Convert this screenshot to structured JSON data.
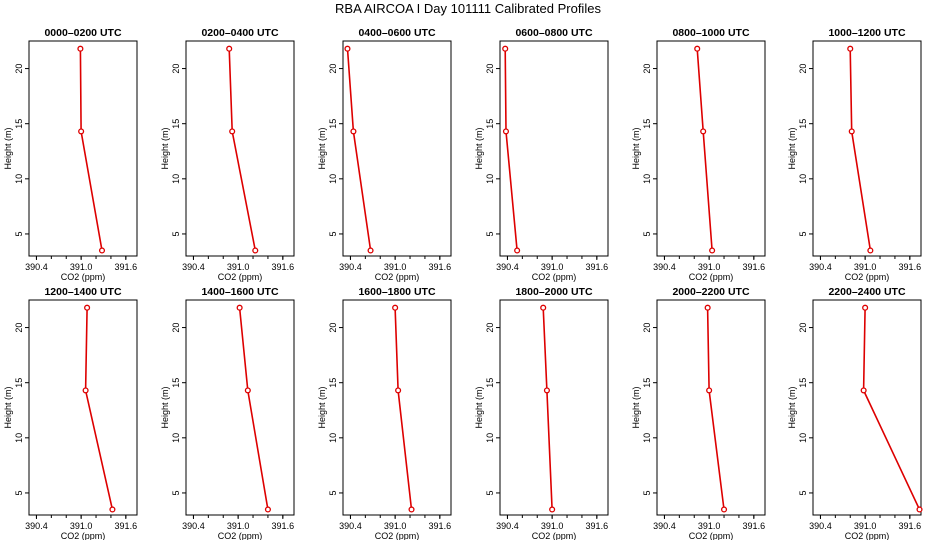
{
  "title": "RBA AIRCOA I  Day 101111  Calibrated Profiles",
  "colors": {
    "series": "#dd0000",
    "axis": "#000000",
    "background": "#ffffff"
  },
  "chart_data": [
    {
      "type": "line",
      "title": "0000–0200 UTC",
      "xlabel": "CO2 (ppm)",
      "ylabel": "Height (m)",
      "xlim": [
        390.3,
        391.75
      ],
      "ylim": [
        3,
        22.5
      ],
      "xticks": [
        "390.4",
        "391.0",
        "391.6"
      ],
      "yticks": [
        "5",
        "10",
        "15",
        "20"
      ],
      "grid": false,
      "series": [
        {
          "x": [
            391.28,
            391.0,
            390.99
          ],
          "y": [
            3.5,
            14.3,
            21.8
          ]
        }
      ]
    },
    {
      "type": "line",
      "title": "0200–0400 UTC",
      "xlabel": "CO2 (ppm)",
      "ylabel": "Height (m)",
      "xlim": [
        390.3,
        391.75
      ],
      "ylim": [
        3,
        22.5
      ],
      "xticks": [
        "390.4",
        "391.0",
        "391.6"
      ],
      "yticks": [
        "5",
        "10",
        "15",
        "20"
      ],
      "grid": false,
      "series": [
        {
          "x": [
            391.23,
            390.92,
            390.88
          ],
          "y": [
            3.5,
            14.3,
            21.8
          ]
        }
      ]
    },
    {
      "type": "line",
      "title": "0400–0600 UTC",
      "xlabel": "CO2 (ppm)",
      "ylabel": "Height (m)",
      "xlim": [
        390.3,
        391.75
      ],
      "ylim": [
        3,
        22.5
      ],
      "xticks": [
        "390.4",
        "391.0",
        "391.6"
      ],
      "yticks": [
        "5",
        "10",
        "15",
        "20"
      ],
      "grid": false,
      "series": [
        {
          "x": [
            390.67,
            390.44,
            390.36
          ],
          "y": [
            3.5,
            14.3,
            21.8
          ]
        }
      ]
    },
    {
      "type": "line",
      "title": "0600–0800 UTC",
      "xlabel": "CO2 (ppm)",
      "ylabel": "Height (m)",
      "xlim": [
        390.3,
        391.75
      ],
      "ylim": [
        3,
        22.5
      ],
      "xticks": [
        "390.4",
        "391.0",
        "391.6"
      ],
      "yticks": [
        "5",
        "10",
        "15",
        "20"
      ],
      "grid": false,
      "series": [
        {
          "x": [
            390.53,
            390.38,
            390.37
          ],
          "y": [
            3.5,
            14.3,
            21.8
          ]
        }
      ]
    },
    {
      "type": "line",
      "title": "0800–1000 UTC",
      "xlabel": "CO2 (ppm)",
      "ylabel": "Height (m)",
      "xlim": [
        390.3,
        391.75
      ],
      "ylim": [
        3,
        22.5
      ],
      "xticks": [
        "390.4",
        "391.0",
        "391.6"
      ],
      "yticks": [
        "5",
        "10",
        "15",
        "20"
      ],
      "grid": false,
      "series": [
        {
          "x": [
            391.04,
            390.92,
            390.84
          ],
          "y": [
            3.5,
            14.3,
            21.8
          ]
        }
      ]
    },
    {
      "type": "line",
      "title": "1000–1200 UTC",
      "xlabel": "CO2 (ppm)",
      "ylabel": "Height (m)",
      "xlim": [
        390.3,
        391.75
      ],
      "ylim": [
        3,
        22.5
      ],
      "xticks": [
        "390.4",
        "391.0",
        "391.6"
      ],
      "yticks": [
        "5",
        "10",
        "15",
        "20"
      ],
      "grid": false,
      "series": [
        {
          "x": [
            391.07,
            390.82,
            390.8
          ],
          "y": [
            3.5,
            14.3,
            21.8
          ]
        }
      ]
    },
    {
      "type": "line",
      "title": "1200–1400 UTC",
      "xlabel": "CO2 (ppm)",
      "ylabel": "Height (m)",
      "xlim": [
        390.3,
        391.75
      ],
      "ylim": [
        3,
        22.5
      ],
      "xticks": [
        "390.4",
        "391.0",
        "391.6"
      ],
      "yticks": [
        "5",
        "10",
        "15",
        "20"
      ],
      "grid": false,
      "series": [
        {
          "x": [
            391.42,
            391.06,
            391.08
          ],
          "y": [
            3.5,
            14.3,
            21.8
          ]
        }
      ]
    },
    {
      "type": "line",
      "title": "1400–1600 UTC",
      "xlabel": "CO2 (ppm)",
      "ylabel": "Height (m)",
      "xlim": [
        390.3,
        391.75
      ],
      "ylim": [
        3,
        22.5
      ],
      "xticks": [
        "390.4",
        "391.0",
        "391.6"
      ],
      "yticks": [
        "5",
        "10",
        "15",
        "20"
      ],
      "grid": false,
      "series": [
        {
          "x": [
            391.4,
            391.13,
            391.02
          ],
          "y": [
            3.5,
            14.3,
            21.8
          ]
        }
      ]
    },
    {
      "type": "line",
      "title": "1600–1800 UTC",
      "xlabel": "CO2 (ppm)",
      "ylabel": "Height (m)",
      "xlim": [
        390.3,
        391.75
      ],
      "ylim": [
        3,
        22.5
      ],
      "xticks": [
        "390.4",
        "391.0",
        "391.6"
      ],
      "yticks": [
        "5",
        "10",
        "15",
        "20"
      ],
      "grid": false,
      "series": [
        {
          "x": [
            391.22,
            391.04,
            391.0
          ],
          "y": [
            3.5,
            14.3,
            21.8
          ]
        }
      ]
    },
    {
      "type": "line",
      "title": "1800–2000 UTC",
      "xlabel": "CO2 (ppm)",
      "ylabel": "Height (m)",
      "xlim": [
        390.3,
        391.75
      ],
      "ylim": [
        3,
        22.5
      ],
      "xticks": [
        "390.4",
        "391.0",
        "391.6"
      ],
      "yticks": [
        "5",
        "10",
        "15",
        "20"
      ],
      "grid": false,
      "series": [
        {
          "x": [
            391.0,
            390.93,
            390.88
          ],
          "y": [
            3.5,
            14.3,
            21.8
          ]
        }
      ]
    },
    {
      "type": "line",
      "title": "2000–2200 UTC",
      "xlabel": "CO2 (ppm)",
      "ylabel": "Height (m)",
      "xlim": [
        390.3,
        391.75
      ],
      "ylim": [
        3,
        22.5
      ],
      "xticks": [
        "390.4",
        "391.0",
        "391.6"
      ],
      "yticks": [
        "5",
        "10",
        "15",
        "20"
      ],
      "grid": false,
      "series": [
        {
          "x": [
            391.2,
            391.0,
            390.98
          ],
          "y": [
            3.5,
            14.3,
            21.8
          ]
        }
      ]
    },
    {
      "type": "line",
      "title": "2200–2400 UTC",
      "xlabel": "CO2 (ppm)",
      "ylabel": "Height (m)",
      "xlim": [
        390.3,
        391.75
      ],
      "ylim": [
        3,
        22.5
      ],
      "xticks": [
        "390.4",
        "391.0",
        "391.6"
      ],
      "yticks": [
        "5",
        "10",
        "15",
        "20"
      ],
      "grid": false,
      "series": [
        {
          "x": [
            391.73,
            390.98,
            391.0
          ],
          "y": [
            3.5,
            14.3,
            21.8
          ]
        }
      ]
    }
  ]
}
